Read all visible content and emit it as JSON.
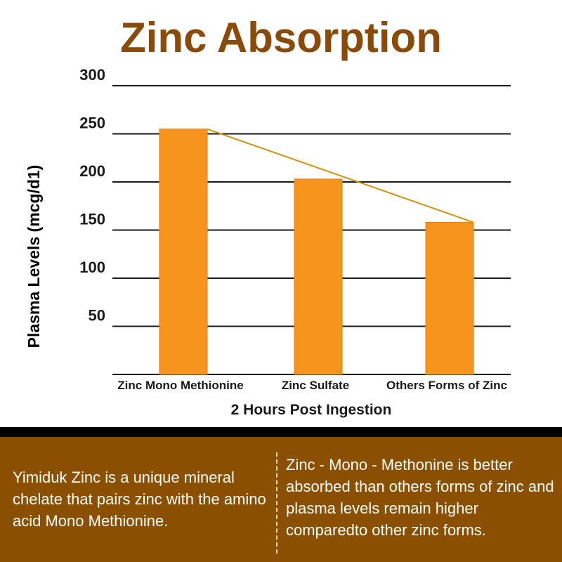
{
  "chart_data": {
    "type": "bar",
    "title": "Zinc Absorption",
    "categories": [
      "Zinc Mono Methionine",
      "Zinc Sulfate",
      "Others Forms of Zinc"
    ],
    "values": [
      255,
      203,
      158
    ],
    "ylabel": "Plasma Levels (mcg/d1)",
    "xlabel": "2 Hours Post Ingestion",
    "ylim": [
      0,
      300
    ],
    "yticks": [
      50,
      100,
      150,
      200,
      250,
      300
    ],
    "grid": true,
    "trend_line": true,
    "bar_color": "#f7941d",
    "trend_color": "#d4900f"
  },
  "colors": {
    "title": "#8a4a08",
    "panel_background": "#8b4f00",
    "panel_border": "#000000",
    "gridline": "#1a1a1a"
  },
  "info_panel": {
    "left_text": "Yimiduk Zinc is a unique mineral chelate that pairs zinc with the amino acid Mono Methionine.",
    "right_text": "Zinc - Mono - Methonine is better absorbed than others forms of zinc and plasma levels remain higher comparedto other zinc forms."
  }
}
